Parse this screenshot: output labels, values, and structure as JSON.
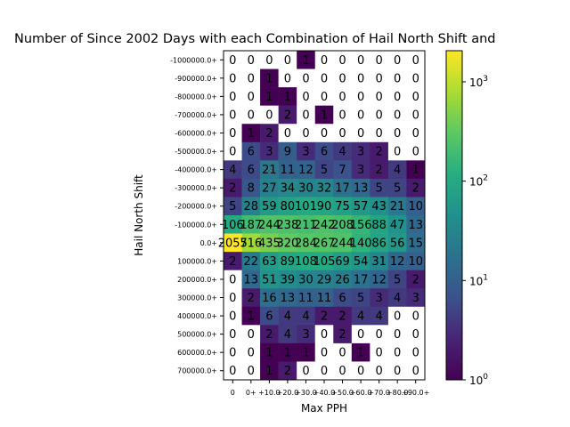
{
  "chart_data": {
    "type": "heatmap",
    "title": "Number of Since 2002 Days with each Combination of Hail North Shift and",
    "xlabel": "Max PPH",
    "ylabel": "Hail North Shift",
    "x_categories": [
      "0",
      "0+",
      "+10.0",
      "+20.0",
      "+30.0",
      "+40.0",
      "+50.0",
      "+60.0",
      "+70.0",
      "+80.0",
      "+90.0+"
    ],
    "y_categories": [
      "-1000000.0+",
      "-900000.0+",
      "-800000.0+",
      "-700000.0+",
      "-600000.0+",
      "-500000.0+",
      "-400000.0+",
      "-300000.0+",
      "-200000.0+",
      "-100000.0+",
      "0.0+",
      "100000.0+",
      "200000.0+",
      "300000.0+",
      "400000.0+",
      "500000.0+",
      "600000.0+",
      "700000.0+"
    ],
    "values": [
      [
        0,
        0,
        0,
        0,
        1,
        0,
        0,
        0,
        0,
        0,
        0
      ],
      [
        0,
        0,
        1,
        0,
        0,
        0,
        0,
        0,
        0,
        0,
        0
      ],
      [
        0,
        0,
        1,
        1,
        0,
        0,
        0,
        0,
        0,
        0,
        0
      ],
      [
        0,
        0,
        0,
        2,
        0,
        1,
        0,
        0,
        0,
        0,
        0
      ],
      [
        0,
        1,
        2,
        0,
        0,
        0,
        0,
        0,
        0,
        0,
        0
      ],
      [
        0,
        6,
        3,
        9,
        3,
        6,
        4,
        3,
        2,
        0,
        0
      ],
      [
        4,
        6,
        21,
        11,
        12,
        5,
        7,
        3,
        2,
        4,
        1
      ],
      [
        2,
        8,
        27,
        34,
        30,
        32,
        17,
        13,
        5,
        5,
        2
      ],
      [
        5,
        28,
        59,
        80,
        101,
        90,
        75,
        57,
        43,
        21,
        10
      ],
      [
        106,
        187,
        244,
        238,
        211,
        242,
        208,
        156,
        88,
        47,
        13
      ],
      [
        2055,
        716,
        435,
        320,
        284,
        267,
        244,
        140,
        86,
        56,
        15
      ],
      [
        2,
        22,
        63,
        89,
        108,
        105,
        69,
        54,
        31,
        12,
        10
      ],
      [
        0,
        13,
        51,
        39,
        30,
        29,
        26,
        17,
        12,
        5,
        2
      ],
      [
        0,
        2,
        16,
        13,
        11,
        11,
        6,
        5,
        3,
        4,
        3
      ],
      [
        0,
        1,
        6,
        4,
        4,
        2,
        2,
        4,
        4,
        0,
        0
      ],
      [
        0,
        0,
        2,
        4,
        3,
        0,
        2,
        0,
        0,
        0,
        0
      ],
      [
        0,
        0,
        1,
        1,
        1,
        0,
        0,
        1,
        0,
        0,
        0
      ],
      [
        0,
        0,
        1,
        2,
        0,
        0,
        0,
        0,
        0,
        0,
        0
      ]
    ],
    "color_scale": {
      "type": "log",
      "colormap": "viridis",
      "range": [
        1,
        2055
      ],
      "ticks": [
        {
          "value": 1,
          "label": "10",
          "exp": "0"
        },
        {
          "value": 10,
          "label": "10",
          "exp": "1"
        },
        {
          "value": 100,
          "label": "10",
          "exp": "2"
        },
        {
          "value": 1000,
          "label": "10",
          "exp": "3"
        }
      ]
    },
    "zero_color": "#ffffff",
    "grid": false
  }
}
